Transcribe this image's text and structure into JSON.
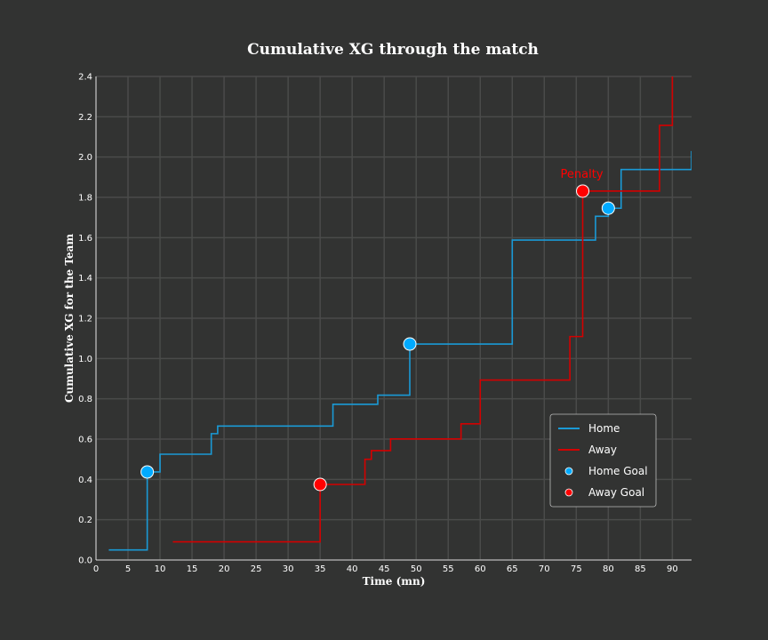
{
  "chart_data": {
    "type": "line",
    "step": "post",
    "title": "Cumulative XG through the match",
    "xlabel": "Time (mn)",
    "ylabel": "Cumulative XG for the Team",
    "xlim": [
      0,
      93
    ],
    "ylim": [
      0,
      2.4
    ],
    "xticks": [
      0,
      5,
      10,
      15,
      20,
      25,
      30,
      35,
      40,
      45,
      50,
      55,
      60,
      65,
      70,
      75,
      80,
      85,
      90
    ],
    "yticks": [
      "0.0",
      "0.2",
      "0.4",
      "0.6",
      "0.8",
      "1.0",
      "1.2",
      "1.4",
      "1.6",
      "1.8",
      "2.0",
      "2.2",
      "2.4"
    ],
    "grid": true,
    "legend_position": "lower-right",
    "series": [
      {
        "name": "Home",
        "color": "#1a9ad6",
        "x": [
          2,
          8,
          10,
          18,
          19,
          37,
          44,
          49,
          65,
          78,
          80,
          82,
          93
        ],
        "y": [
          0.05,
          0.437,
          0.525,
          0.627,
          0.665,
          0.773,
          0.818,
          1.072,
          1.588,
          1.706,
          1.746,
          1.938,
          2.03
        ]
      },
      {
        "name": "Away",
        "color": "#d40000",
        "x": [
          12,
          35,
          42,
          43,
          46,
          57,
          60,
          74,
          76,
          88,
          90
        ],
        "y": [
          0.09,
          0.375,
          0.5,
          0.543,
          0.601,
          0.676,
          0.893,
          1.109,
          1.831,
          2.157,
          2.5
        ]
      }
    ],
    "goals": [
      {
        "name": "Home Goal",
        "color": "#00aaff",
        "points": [
          [
            8,
            0.437
          ],
          [
            49,
            1.072
          ],
          [
            80,
            1.746
          ]
        ]
      },
      {
        "name": "Away Goal",
        "color": "#ff0000",
        "points": [
          [
            35,
            0.375
          ],
          [
            76,
            1.831
          ]
        ]
      }
    ],
    "annotations": [
      {
        "text": "Penalty",
        "x": 76,
        "y": 1.92,
        "color": "#ff0000"
      }
    ]
  }
}
